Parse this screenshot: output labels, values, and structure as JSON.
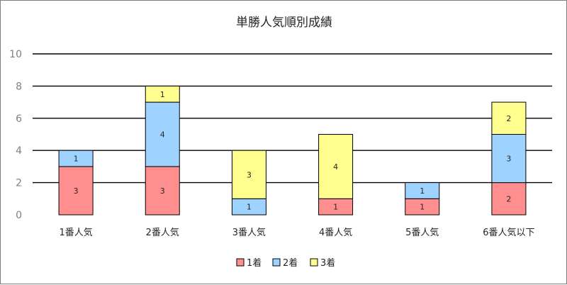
{
  "chart_data": {
    "type": "bar",
    "stacked": true,
    "title": "単勝人気順別成績",
    "categories": [
      "1番人気",
      "2番人気",
      "3番人気",
      "4番人気",
      "5番人気",
      "6番人気以下"
    ],
    "series": [
      {
        "name": "1着",
        "color": "#ff8f8f",
        "values": [
          3,
          3,
          0,
          1,
          1,
          2
        ]
      },
      {
        "name": "2着",
        "color": "#9fd3ff",
        "values": [
          1,
          4,
          1,
          0,
          1,
          3
        ]
      },
      {
        "name": "3着",
        "color": "#ffff8f",
        "values": [
          0,
          1,
          3,
          4,
          0,
          2
        ]
      }
    ],
    "ylim": [
      0,
      10
    ],
    "yticks": [
      "0",
      "2",
      "4",
      "6",
      "8",
      "10"
    ],
    "grid": true,
    "legend_position": "bottom"
  }
}
